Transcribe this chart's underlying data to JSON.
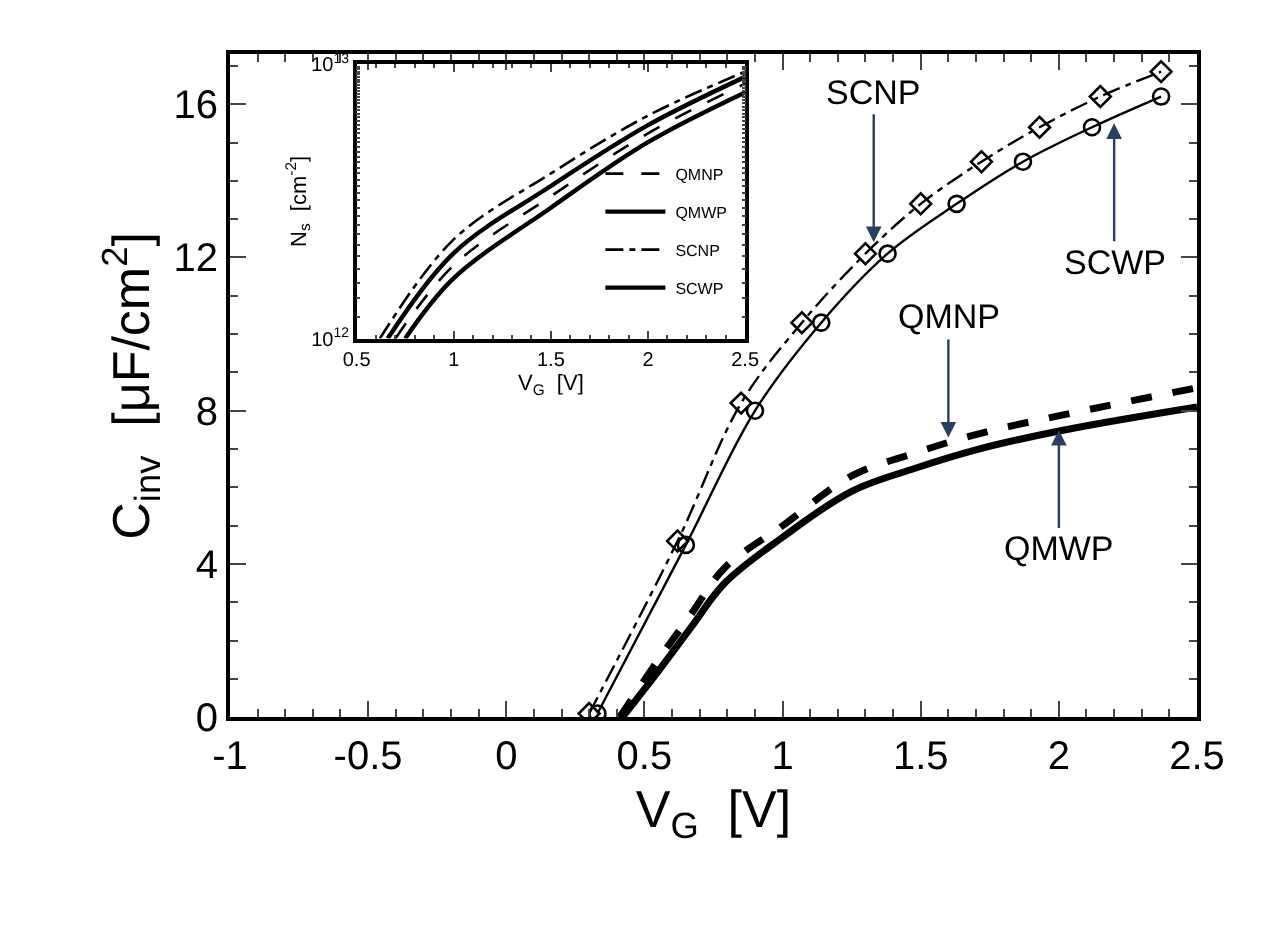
{
  "chart_data": [
    {
      "type": "line",
      "xlabel": "V$_{G}$  [V]",
      "ylabel": "C$_{inv}$  [μF/cm$^{2}$]",
      "xlim": [
        -1,
        2.5
      ],
      "ylim": [
        0,
        17.3
      ],
      "xticks": [
        -1,
        -0.5,
        0,
        0.5,
        1,
        1.5,
        2,
        2.5
      ],
      "yticks": [
        0,
        4,
        8,
        12,
        16
      ],
      "legend": false,
      "series": [
        {
          "color": "#000000",
          "marker": "diamond",
          "line_style": "dashed",
          "x": [
            0.3,
            0.62,
            0.85,
            1.07,
            1.3,
            1.5,
            1.72,
            1.93,
            2.15,
            2.37
          ],
          "values": [
            0.1,
            4.6,
            8.2,
            10.3,
            12.1,
            13.4,
            14.5,
            15.4,
            16.2,
            16.85
          ]
        },
        {
          "color": "#000000",
          "marker": "circle",
          "line_style": "solid",
          "x": [
            0.33,
            0.65,
            0.9,
            1.14,
            1.38,
            1.63,
            1.87,
            2.12,
            2.37
          ],
          "values": [
            0.1,
            4.5,
            8.0,
            10.3,
            12.1,
            13.4,
            14.5,
            15.4,
            16.2
          ]
        },
        {
          "color": "#000000",
          "marker": "none",
          "line_style": "dotted",
          "x": [
            0.41,
            0.55,
            0.67,
            0.79,
            1.0,
            1.25,
            1.48,
            1.71,
            2.02,
            2.5
          ],
          "values": [
            0,
            1.5,
            2.7,
            3.9,
            5.0,
            6.3,
            6.9,
            7.4,
            7.9,
            8.6
          ]
        },
        {
          "color": "#000000",
          "marker": "none",
          "line_style": "solid",
          "x": [
            0.42,
            0.55,
            0.67,
            0.79,
            1.0,
            1.25,
            1.48,
            1.71,
            2.02,
            2.5
          ],
          "values": [
            0,
            1.2,
            2.36,
            3.5,
            4.7,
            5.9,
            6.5,
            7.0,
            7.5,
            8.1
          ]
        }
      ],
      "annotations": [
        {
          "text": "SCNP",
          "x": 1.33,
          "y": 12.4
        },
        {
          "text": "SCWP",
          "x": 2.2,
          "y": 15.5
        },
        {
          "text": "QMNP",
          "x": 1.6,
          "y": 7.3
        },
        {
          "text": "QMWP",
          "x": 2.0,
          "y": 7.5
        }
      ]
    },
    {
      "type": "line",
      "xlabel": "V$_{G}$  [V]",
      "ylabel": "N$_{s}$  [cm$^{-2}$]",
      "xlim": [
        0.5,
        2.5
      ],
      "ylim": [
        1000000000000.0,
        10000000000000.0
      ],
      "log": true,
      "xticks": [
        0.5,
        1,
        1.5,
        2,
        2.5
      ],
      "yticks": [
        {
          "value": 1000000000000.0,
          "label": "10$^{12}$"
        },
        {
          "value": 10000000000000.0,
          "label": "10$^{13}$"
        }
      ],
      "legend": "bottom right",
      "series": [
        {
          "name": "QMNP",
          "color": "#000000",
          "line_style": "dashed",
          "x": [
            0.7,
            1.0,
            1.5,
            2.0,
            2.5
          ],
          "values": [
            1000000000000.0,
            1850000000000.0,
            3300000000000.0,
            5600000000000.0,
            8500000000000.0
          ]
        },
        {
          "name": "QMWP",
          "color": "#000000",
          "line_style": "solid",
          "x": [
            0.75,
            1.0,
            1.5,
            2.0,
            2.5
          ],
          "values": [
            1000000000000.0,
            1660000000000.0,
            3000000000000.0,
            5200000000000.0,
            7900000000000.0
          ]
        },
        {
          "name": "SCNP",
          "color": "#000000",
          "line_style": "dotted",
          "x": [
            0.62,
            1.0,
            1.5,
            2.0,
            2.5
          ],
          "values": [
            1000000000000.0,
            2300000000000.0,
            4000000000000.0,
            6500000000000.0,
            9400000000000.0
          ]
        },
        {
          "name": "SCWP",
          "color": "#000000",
          "line_style": "solid",
          "x": [
            0.66,
            1.0,
            1.5,
            2.0,
            2.5
          ],
          "values": [
            1000000000000.0,
            2050000000000.0,
            3600000000000.0,
            6000000000000.0,
            9000000000000.0
          ]
        }
      ]
    }
  ]
}
